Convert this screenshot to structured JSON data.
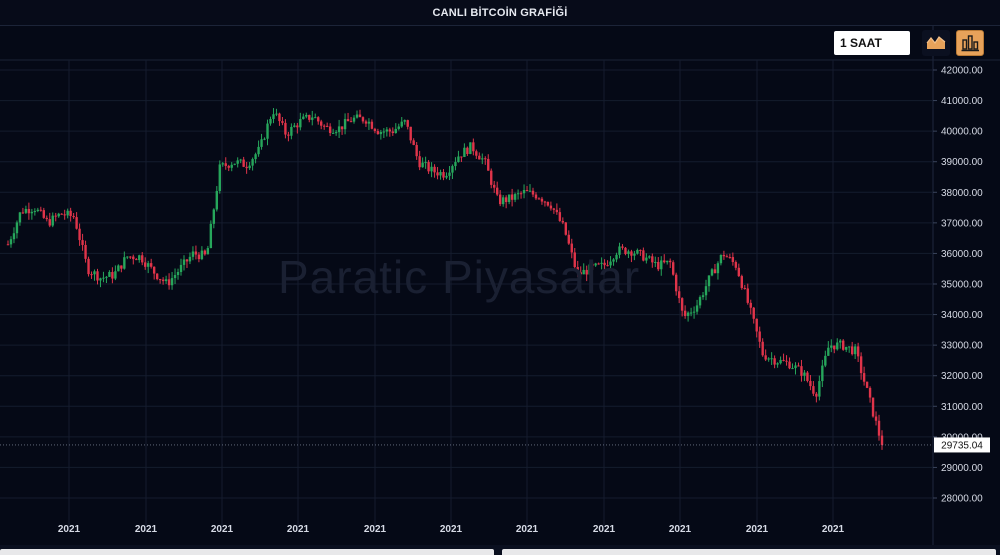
{
  "header": {
    "title": "CANLI BİTCOİN GRAFİĞİ"
  },
  "toolbar": {
    "interval_value": "1 SAAT",
    "buttons": [
      {
        "name": "area-chart",
        "icon": "area-chart-icon"
      },
      {
        "name": "candlestick-chart",
        "icon": "bar-chart-icon"
      }
    ]
  },
  "watermark": "Paratic Piyasalar",
  "colors": {
    "up": "#26a65b",
    "down": "#e0344a",
    "background": "#050916",
    "grid": "#151c2e"
  },
  "chart_data": {
    "type": "candlestick",
    "title": "CANLI BİTCOİN GRAFİĞİ",
    "ylim": [
      27500,
      42200
    ],
    "y_ticks": [
      "28000.00",
      "29000.00",
      "30000.00",
      "31000.00",
      "32000.00",
      "33000.00",
      "34000.00",
      "35000.00",
      "36000.00",
      "37000.00",
      "38000.00",
      "39000.00",
      "40000.00",
      "41000.00",
      "42000.00"
    ],
    "x_ticks": [
      "2021",
      "2021",
      "2021",
      "2021",
      "2021",
      "2021",
      "2021",
      "2021",
      "2021",
      "2021",
      "2021"
    ],
    "grid": true,
    "last_price": "29735.04",
    "close_path": [
      36300,
      37400,
      37500,
      37000,
      37300,
      37200,
      35500,
      35200,
      35300,
      35900,
      35900,
      35400,
      35000,
      35500,
      36000,
      35900,
      38800,
      39000,
      38900,
      39400,
      40700,
      39900,
      40300,
      40500,
      40100,
      40100,
      40400,
      40400,
      40000,
      40000,
      40300,
      39000,
      38700,
      38600,
      39200,
      39500,
      39000,
      37700,
      37800,
      38000,
      37900,
      37600,
      36800,
      35300,
      35500,
      35600,
      36100,
      36100,
      35900,
      35600,
      35700,
      33900,
      34300,
      35200,
      36000,
      35600,
      34200,
      32700,
      32500,
      32400,
      32100,
      31400,
      33000,
      33000,
      32800,
      31300,
      29735
    ]
  }
}
